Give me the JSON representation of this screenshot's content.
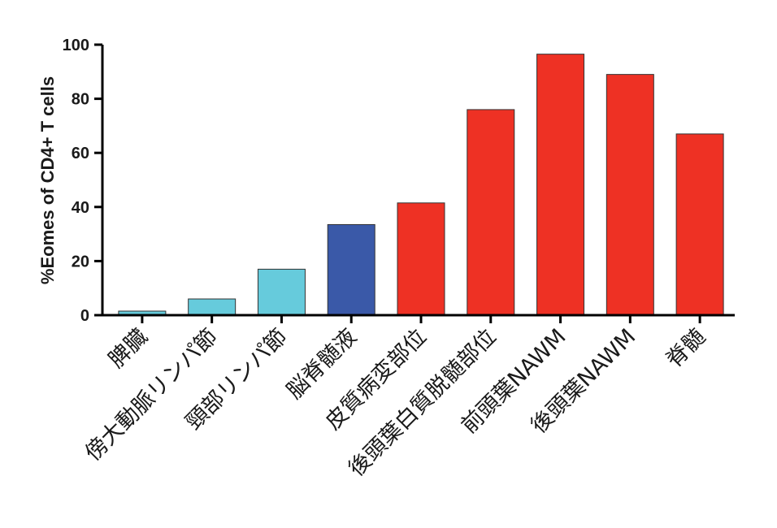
{
  "chart_data": {
    "type": "bar",
    "ylabel": "%Eomes of CD4+ T cells",
    "ylim": [
      0,
      100
    ],
    "yticks": [
      0,
      20,
      40,
      60,
      80,
      100
    ],
    "categories": [
      "脾臓",
      "傍大動脈リンパ節",
      "頸部リンパ節",
      "脳脊髄液",
      "皮質病変部位",
      "後頭葉白質脱髄部位",
      "前頭葉NAWM",
      "後頭葉NAWM",
      "脊髄"
    ],
    "values": [
      1.5,
      6,
      17,
      33.5,
      41.5,
      76,
      96.5,
      89,
      67
    ],
    "colors": [
      "#66cbdc",
      "#66cbdc",
      "#66cbdc",
      "#3a59a8",
      "#ee3124",
      "#ee3124",
      "#ee3124",
      "#ee3124",
      "#ee3124"
    ],
    "grid": false,
    "legend": "none"
  }
}
